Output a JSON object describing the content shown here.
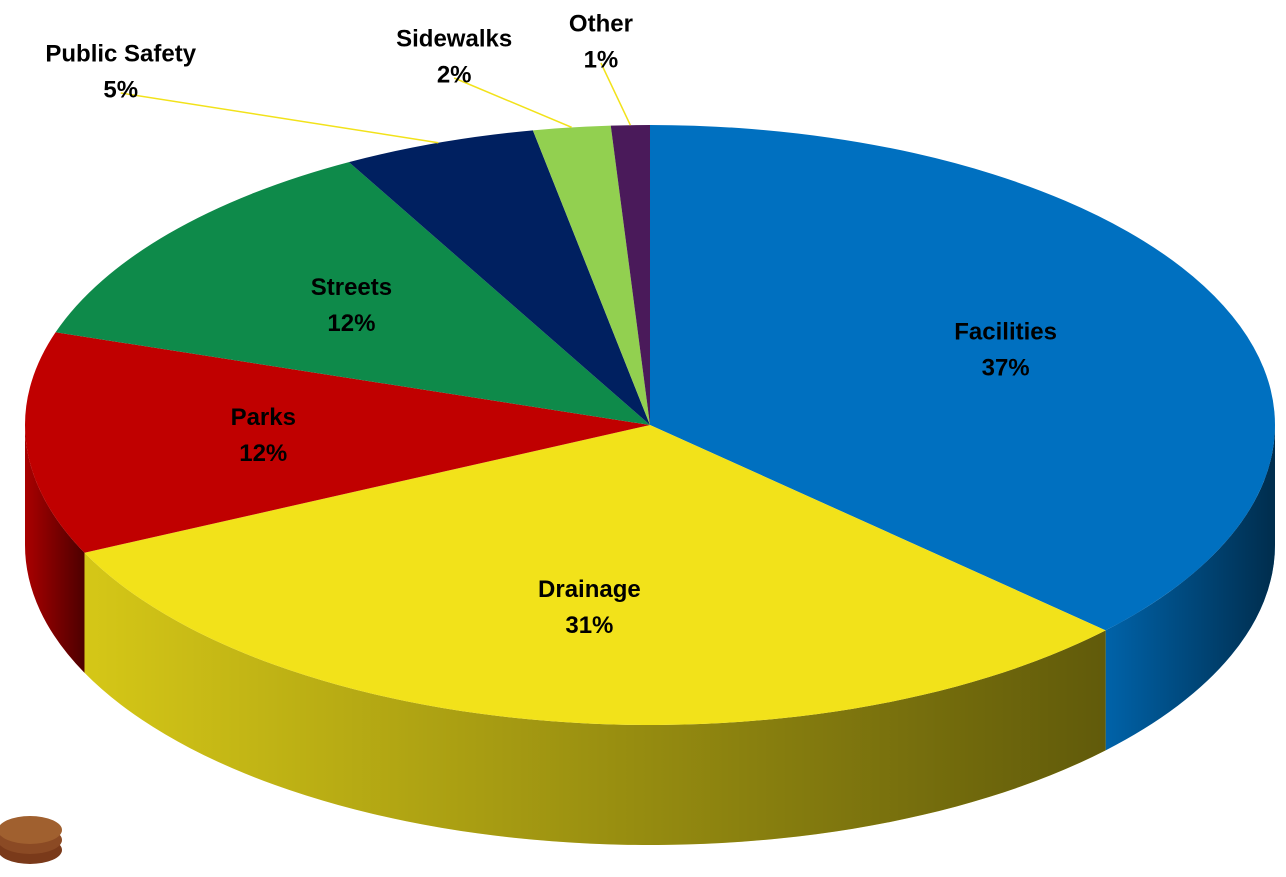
{
  "chart_data": {
    "type": "pie3d",
    "categories": [
      "Facilities",
      "Drainage",
      "Parks",
      "Streets",
      "Public Safety",
      "Sidewalks",
      "Other"
    ],
    "values": [
      37,
      31,
      12,
      12,
      5,
      2,
      1
    ],
    "value_labels": [
      "37%",
      "31%",
      "12%",
      "12%",
      "5%",
      "2%",
      "1%"
    ],
    "colors": [
      "#0070c0",
      "#f2e21a",
      "#c00000",
      "#0e8a4a",
      "#002060",
      "#92d050",
      "#4a1a5a"
    ]
  }
}
